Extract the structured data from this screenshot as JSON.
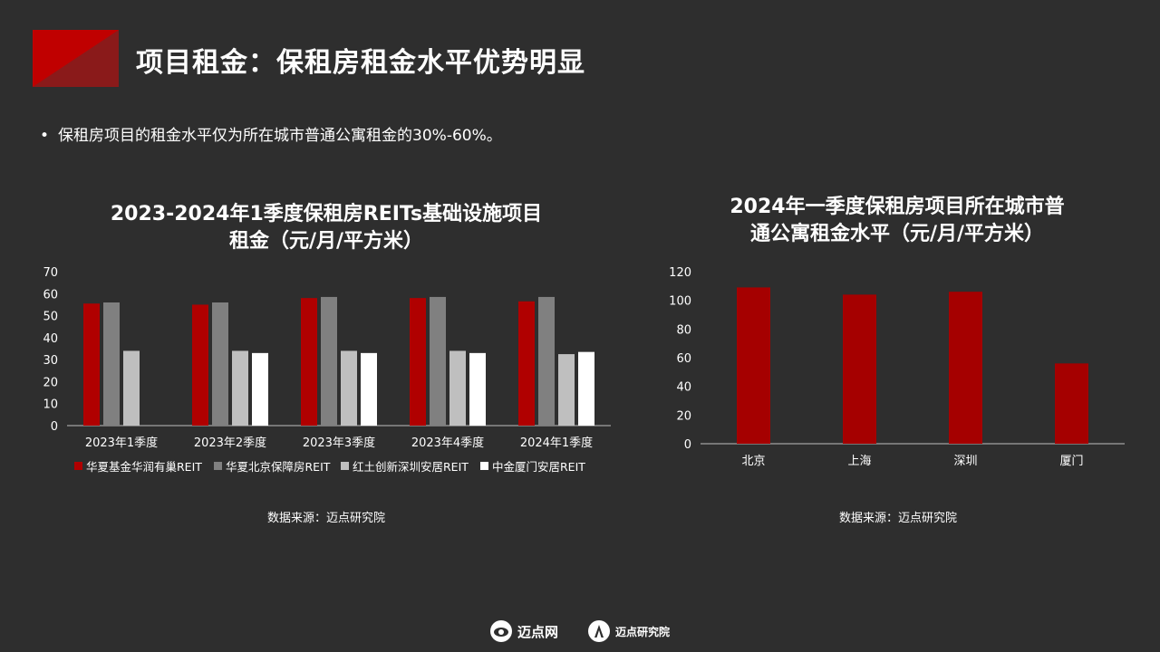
{
  "title": "项目租金：保租房租金水平优势明显",
  "bullet": "保租房项目的租金水平仅为所在城市普通公寓租金的30%-60%。",
  "colors": {
    "accent": "#b00000",
    "accent_dark": "#8a1010",
    "bg": "#2e2e2e"
  },
  "footer": {
    "brand_a": "迈点网",
    "brand_b": "迈点研究院",
    "brand_a_icon": "eye-logo-icon",
    "brand_b_icon": "a-logo-icon"
  },
  "chart_data": [
    {
      "type": "bar",
      "title": "2023-2024年1季度保租房REITs基础设施项目租金（元/月/平方米）",
      "title_lines": [
        "2023-2024年1季度保租房REITs基础设施项目",
        "租金（元/月/平方米）"
      ],
      "categories": [
        "2023年1季度",
        "2023年2季度",
        "2023年3季度",
        "2023年4季度",
        "2024年1季度"
      ],
      "series": [
        {
          "name": "华夏基金华润有巢REIT",
          "color": "#b00000",
          "values": [
            55.5,
            55,
            58,
            58,
            56.5
          ]
        },
        {
          "name": "华夏北京保障房REIT",
          "color": "#808080",
          "values": [
            56,
            56,
            58.5,
            58.5,
            58.5
          ]
        },
        {
          "name": "红土创新深圳安居REIT",
          "color": "#bfbfbf",
          "values": [
            34,
            34,
            34,
            34,
            32.5
          ]
        },
        {
          "name": "中金厦门安居REIT",
          "color": "#ffffff",
          "values": [
            null,
            33,
            33,
            33,
            33.5
          ]
        }
      ],
      "ylim": [
        0,
        70
      ],
      "yticks": [
        "0",
        "10",
        "20",
        "30",
        "40",
        "50",
        "60",
        "70"
      ],
      "legend": "bottom",
      "grid": false,
      "source": "数据来源：迈点研究院"
    },
    {
      "type": "bar",
      "title": "2024年一季度保租房项目所在城市普通公寓租金水平（元/月/平方米）",
      "title_lines": [
        "2024年一季度保租房项目所在城市普",
        "通公寓租金水平（元/月/平方米）"
      ],
      "categories": [
        "北京",
        "上海",
        "深圳",
        "厦门"
      ],
      "series": [
        {
          "color": "#a50000",
          "values": [
            109,
            104,
            106,
            56
          ]
        }
      ],
      "ylim": [
        0,
        120
      ],
      "yticks": [
        "0",
        "20",
        "40",
        "60",
        "80",
        "100",
        "120"
      ],
      "legend": "none",
      "grid": false,
      "source": "数据来源：迈点研究院"
    }
  ]
}
